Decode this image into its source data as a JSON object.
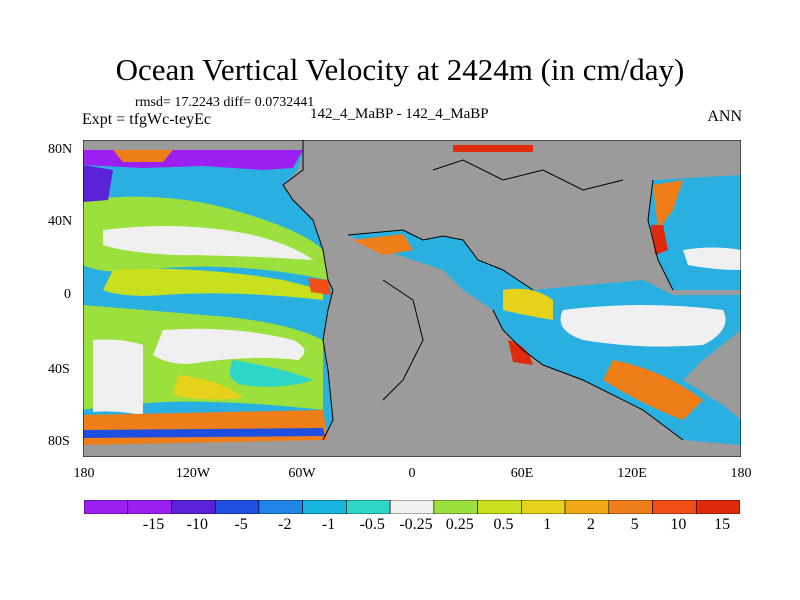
{
  "title": "Ocean Vertical Velocity at 2424m (in cm/day)",
  "stats": "rmsd= 17.2243 diff= 0.0732441",
  "expt": "Expt = tfgWc-teyEc",
  "center_label": "142_4_MaBP - 142_4_MaBP",
  "season": "ANN",
  "y_ticks": [
    "80N",
    "40N",
    "0",
    "40S",
    "80S"
  ],
  "x_ticks": [
    "180",
    "120W",
    "60W",
    "0",
    "60E",
    "120E",
    "180"
  ],
  "colorbar": {
    "labels": [
      "-15",
      "-10",
      "-5",
      "-2",
      "-1",
      "-0.5",
      "-0.25",
      "0.25",
      "0.5",
      "1",
      "2",
      "5",
      "10",
      "15"
    ],
    "colors": [
      "#9b1ff0",
      "#5a22d8",
      "#1f4fe0",
      "#1f86e8",
      "#19b4e0",
      "#2ed6c8",
      "#f0f0f0",
      "#9be03c",
      "#c8e01e",
      "#e6d21a",
      "#f0aa18",
      "#f07e18",
      "#f05018",
      "#e02a0e"
    ]
  },
  "land_color": "#9b9b9b"
}
